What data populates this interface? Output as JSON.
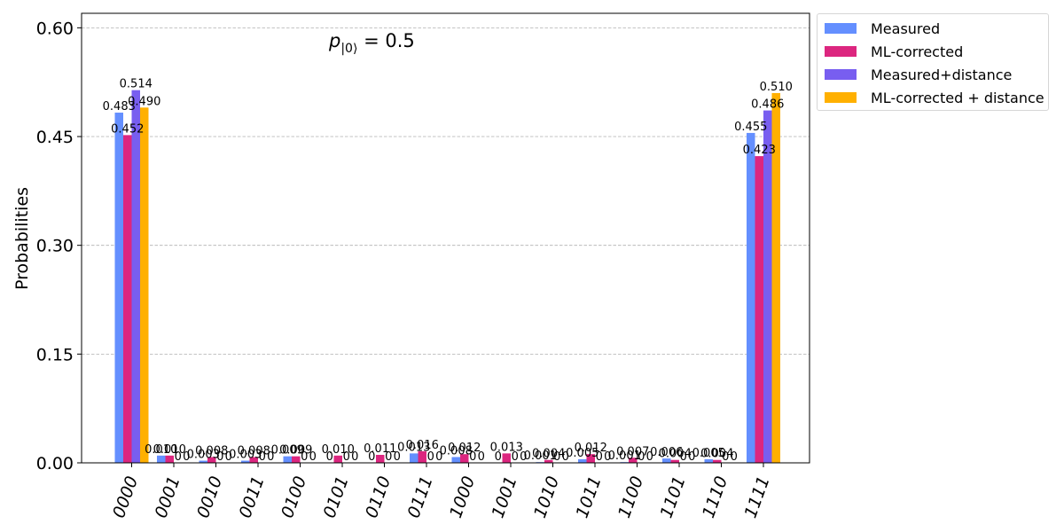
{
  "chart_data": {
    "type": "bar",
    "title": "",
    "annotation": {
      "main": "p",
      "subscript": "|0⟩",
      "rest": " = 0.5"
    },
    "xlabel": "",
    "ylabel": "Probabilities",
    "ylim": [
      0,
      0.62
    ],
    "yticks": [
      "0.00",
      "0.15",
      "0.30",
      "0.45",
      "0.60"
    ],
    "ytick_values": [
      0,
      0.15,
      0.3,
      0.45,
      0.6
    ],
    "grid": "horizontal-dashed",
    "legend_position": "outside-top-right",
    "categories": [
      "0000",
      "0001",
      "0010",
      "0011",
      "0100",
      "0101",
      "0110",
      "0111",
      "1000",
      "1001",
      "1010",
      "1011",
      "1100",
      "1101",
      "1110",
      "1111"
    ],
    "series": [
      {
        "name": "Measured",
        "color": "#648fff",
        "values": [
          0.483,
          0.01,
          0.003,
          0.003,
          0.009,
          0,
          0,
          0.013,
          0.008,
          0,
          0.001,
          0.005,
          0.001,
          0.006,
          0.005,
          0.455
        ],
        "labels": [
          "0.483",
          "0.010",
          "0.003",
          "0.003",
          "0.009",
          "0",
          "0",
          "0.013",
          "0.008",
          "0",
          "0.001",
          "0.005",
          "0.001",
          "0.006",
          "0.005",
          "0.455"
        ]
      },
      {
        "name": "ML-corrected",
        "color": "#dc267f",
        "values": [
          0.452,
          0.01,
          0.008,
          0.008,
          0.009,
          0.01,
          0.011,
          0.016,
          0.012,
          0.013,
          0.004,
          0.012,
          0.007,
          0.004,
          0.004,
          0.423
        ],
        "labels": [
          "0.452",
          "0.010",
          "0.008",
          "0.008",
          "0.009",
          "0.010",
          "0.011",
          "0.016",
          "0.012",
          "0.013",
          "0.004",
          "0.012",
          "0.007",
          "0.004",
          "0.004",
          "0.423"
        ]
      },
      {
        "name": "Measured+distance",
        "color": "#785ef0",
        "values": [
          0.514,
          0,
          0,
          0,
          0,
          0,
          0,
          0,
          0,
          0,
          0,
          0,
          0,
          0,
          0,
          0.486
        ],
        "labels": [
          "0.514",
          "0",
          "0",
          "0",
          "0",
          "0",
          "0",
          "0",
          "0",
          "0",
          "0",
          "0",
          "0",
          "0",
          "0",
          "0.486"
        ]
      },
      {
        "name": "ML-corrected + distance",
        "color": "#ffb000",
        "values": [
          0.49,
          0,
          0,
          0,
          0,
          0,
          0,
          0,
          0,
          0,
          0,
          0,
          0,
          0,
          0,
          0.51
        ],
        "labels": [
          "0.490",
          "0",
          "0",
          "0",
          "0",
          "0",
          "0",
          "0",
          "0",
          "0",
          "0",
          "0",
          "0",
          "0",
          "0",
          "0.510"
        ]
      }
    ]
  }
}
